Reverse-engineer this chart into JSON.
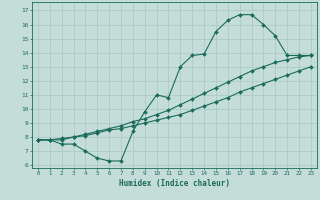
{
  "xlabel": "Humidex (Indice chaleur)",
  "xlim": [
    -0.5,
    23.5
  ],
  "ylim": [
    5.8,
    17.6
  ],
  "xticks": [
    0,
    1,
    2,
    3,
    4,
    5,
    6,
    7,
    8,
    9,
    10,
    11,
    12,
    13,
    14,
    15,
    16,
    17,
    18,
    19,
    20,
    21,
    22,
    23
  ],
  "yticks": [
    6,
    7,
    8,
    9,
    10,
    11,
    12,
    13,
    14,
    15,
    16,
    17
  ],
  "bg_color": "#c5ddd8",
  "line_color": "#1a6b5a",
  "grid_color": "#a8c8c2",
  "line1_x": [
    0,
    1,
    2,
    3,
    4,
    5,
    6,
    7,
    8,
    9,
    10,
    11,
    12,
    13,
    14,
    15,
    16,
    17,
    18,
    19,
    20,
    21,
    22,
    23
  ],
  "line1_y": [
    7.8,
    7.8,
    7.5,
    7.5,
    7.0,
    6.5,
    6.3,
    6.3,
    8.4,
    9.8,
    11.0,
    10.8,
    13.0,
    13.8,
    13.9,
    15.5,
    16.3,
    16.7,
    16.7,
    16.0,
    15.2,
    13.8,
    13.8,
    13.8
  ],
  "line2_x": [
    0,
    1,
    2,
    3,
    4,
    5,
    6,
    7,
    8,
    9,
    10,
    11,
    12,
    13,
    14,
    15,
    16,
    17,
    18,
    19,
    20,
    21,
    22,
    23
  ],
  "line2_y": [
    7.8,
    7.8,
    7.8,
    8.0,
    8.2,
    8.4,
    8.6,
    8.8,
    9.1,
    9.3,
    9.6,
    9.9,
    10.3,
    10.7,
    11.1,
    11.5,
    11.9,
    12.3,
    12.7,
    13.0,
    13.3,
    13.5,
    13.7,
    13.8
  ],
  "line3_x": [
    0,
    1,
    2,
    3,
    4,
    5,
    6,
    7,
    8,
    9,
    10,
    11,
    12,
    13,
    14,
    15,
    16,
    17,
    18,
    19,
    20,
    21,
    22,
    23
  ],
  "line3_y": [
    7.8,
    7.8,
    7.9,
    8.0,
    8.1,
    8.3,
    8.5,
    8.6,
    8.8,
    9.0,
    9.2,
    9.4,
    9.6,
    9.9,
    10.2,
    10.5,
    10.8,
    11.2,
    11.5,
    11.8,
    12.1,
    12.4,
    12.7,
    13.0
  ]
}
